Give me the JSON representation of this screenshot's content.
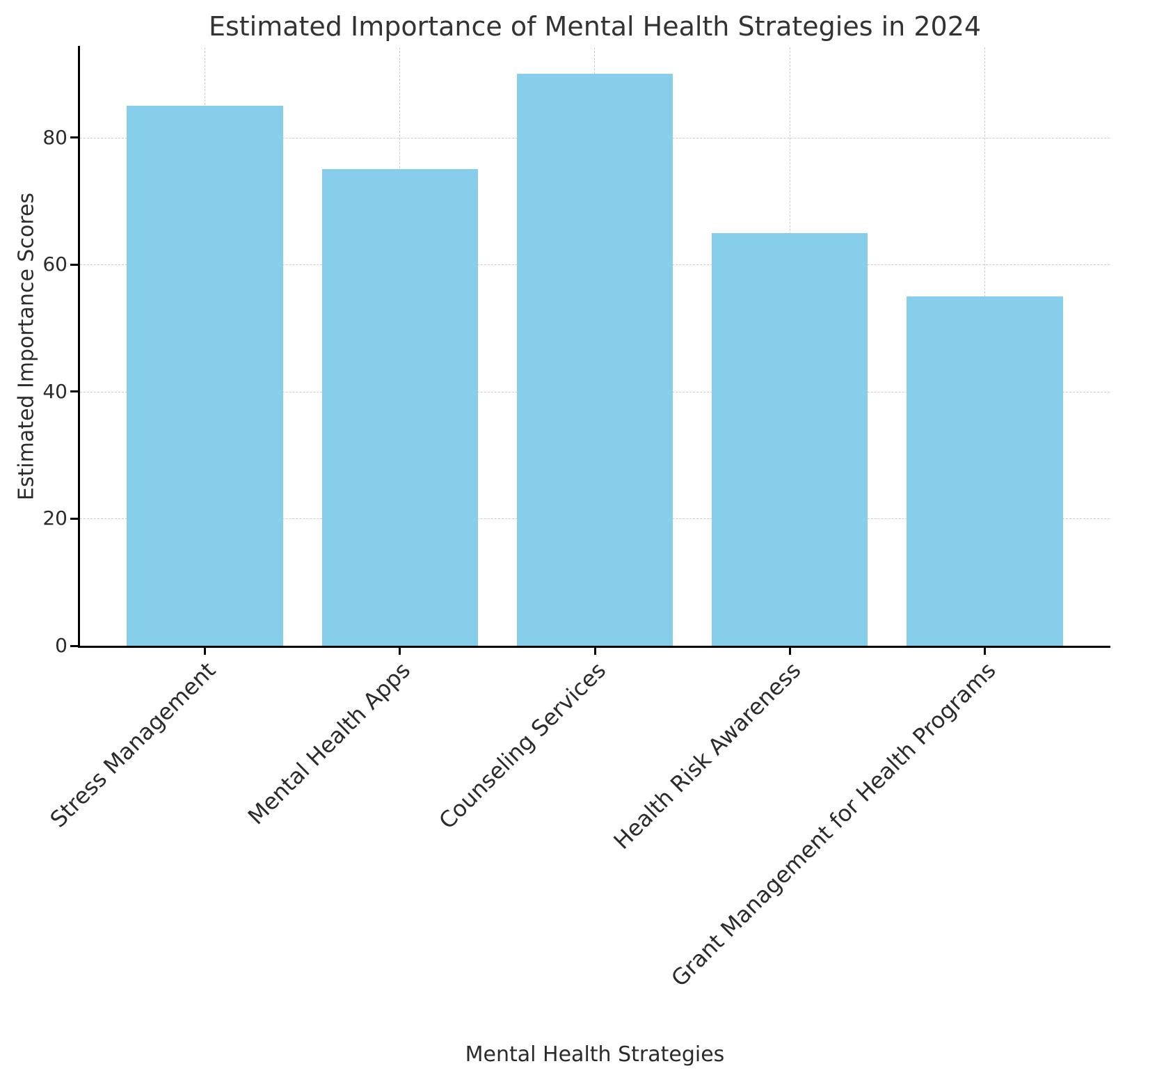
{
  "chart_data": {
    "type": "bar",
    "title": "Estimated Importance of Mental Health Strategies in 2024",
    "xlabel": "Mental Health Strategies",
    "ylabel": "Estimated Importance Scores",
    "categories": [
      "Stress Management",
      "Mental Health Apps",
      "Counseling Services",
      "Health Risk Awareness",
      "Grant Management for Health Programs"
    ],
    "values": [
      85,
      75,
      90,
      65,
      55
    ],
    "yticks": [
      0,
      20,
      40,
      60,
      80
    ],
    "ylim": [
      0,
      94.2
    ],
    "bar_color": "#87CEEB",
    "grid": {
      "visible": true,
      "style": "dashed",
      "color": "#cccccc",
      "axis": "both"
    },
    "bar_width_fraction": 0.8,
    "legend_position": "none"
  }
}
